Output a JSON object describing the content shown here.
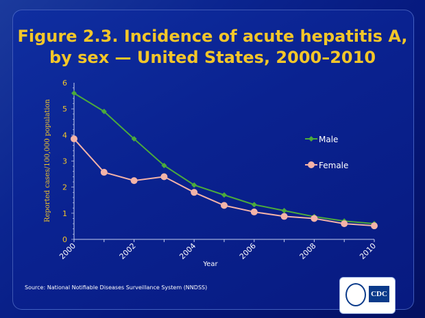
{
  "chart_data": {
    "type": "line",
    "title": "Figure 2.3. Incidence of acute hepatitis A, by sex — United States, 2000–2010",
    "title_lines": [
      "Figure 2.3. Incidence of acute hepatitis A,",
      "by sex — United States, 2000–2010"
    ],
    "xlabel": "Year",
    "ylabel": "Reported cases/100,000 population",
    "x": [
      2000,
      2001,
      2002,
      2003,
      2004,
      2005,
      2006,
      2007,
      2008,
      2009,
      2010
    ],
    "xticklabels": [
      "2000",
      "2002",
      "2004",
      "2006",
      "2008",
      "2010"
    ],
    "yticklabels": [
      "0",
      "1",
      "2",
      "3",
      "4",
      "5",
      "6"
    ],
    "ylim": [
      0,
      6
    ],
    "xlim": [
      2000,
      2010
    ],
    "grid": false,
    "legend": "right",
    "series": [
      {
        "name": "Male",
        "color": "#4caa3c",
        "marker": "diamond",
        "values": [
          5.6,
          4.9,
          3.85,
          2.83,
          2.08,
          1.7,
          1.33,
          1.1,
          0.87,
          0.7,
          0.6
        ]
      },
      {
        "name": "Female",
        "color": "#f4b3a8",
        "marker": "circle",
        "values": [
          3.85,
          2.57,
          2.25,
          2.4,
          1.8,
          1.3,
          1.05,
          0.88,
          0.8,
          0.6,
          0.52
        ]
      }
    ]
  },
  "source": "Source: National Notifiable Diseases Surveillance System (NNDSS)",
  "logo": {
    "text": "CDC"
  },
  "colors": {
    "title": "#f3c629",
    "axis_text": "#f3c629",
    "tick_text": "#ffffff"
  }
}
